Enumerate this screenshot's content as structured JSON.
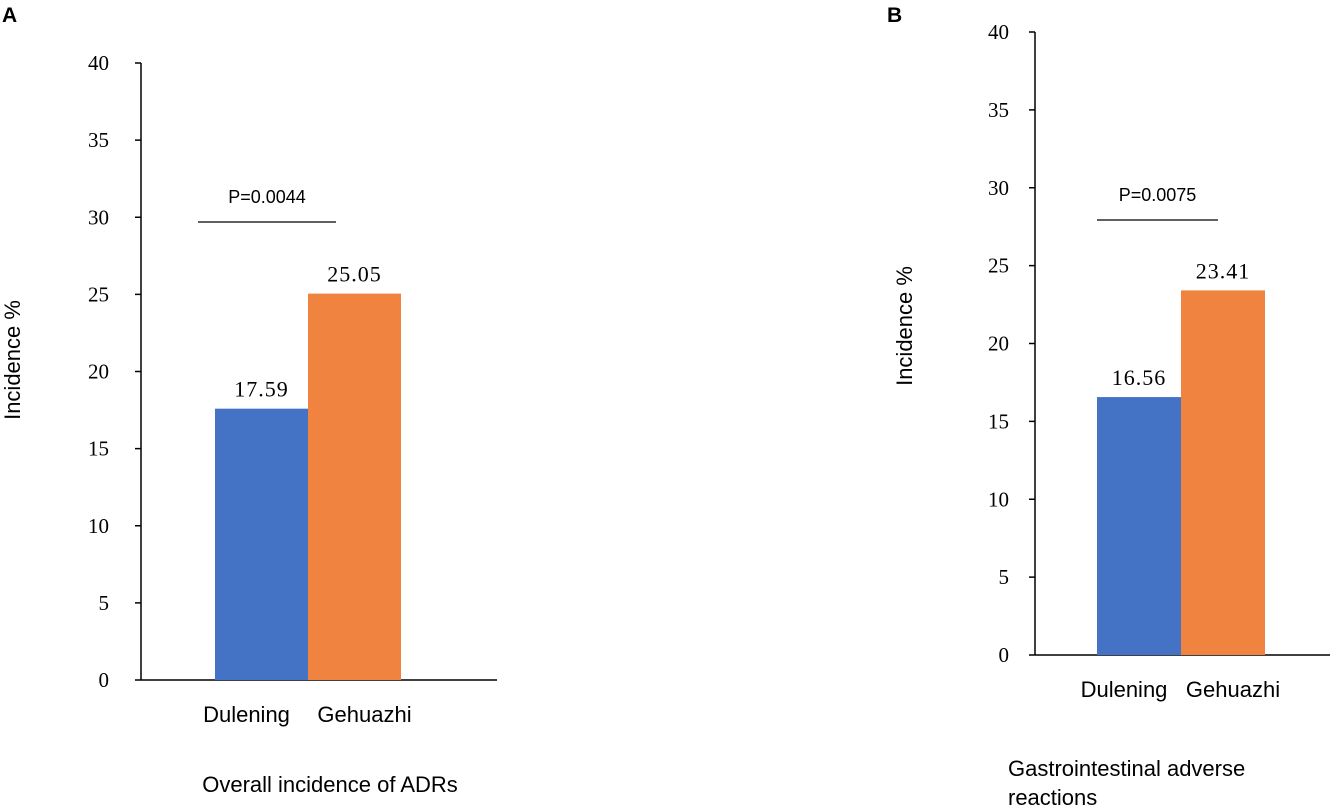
{
  "chart_data": [
    {
      "panel": "A",
      "type": "bar",
      "categories": [
        "Dulening",
        "Gehuazhi"
      ],
      "values": [
        17.59,
        25.05
      ],
      "value_labels": [
        "17.59",
        "25.05"
      ],
      "colors": [
        "#4472C4",
        "#F0833F"
      ],
      "ylabel": "Incidence %",
      "xlabel": "Overall incidence of ADRs",
      "ylim": [
        0,
        40
      ],
      "yticks": [
        0,
        5,
        10,
        15,
        20,
        25,
        30,
        35,
        40
      ],
      "annotation": "P=0.0044"
    },
    {
      "panel": "B",
      "type": "bar",
      "categories": [
        "Dulening",
        "Gehuazhi"
      ],
      "values": [
        16.56,
        23.41
      ],
      "value_labels": [
        "16.56",
        "23.41"
      ],
      "colors": [
        "#4472C4",
        "#F0833F"
      ],
      "ylabel": "Incidence %",
      "xlabel_lines": [
        "Gastrointestinal adverse",
        "reactions"
      ],
      "ylim": [
        0,
        40
      ],
      "yticks": [
        0,
        5,
        10,
        15,
        20,
        25,
        30,
        35,
        40
      ],
      "annotation": "P=0.0075"
    }
  ]
}
